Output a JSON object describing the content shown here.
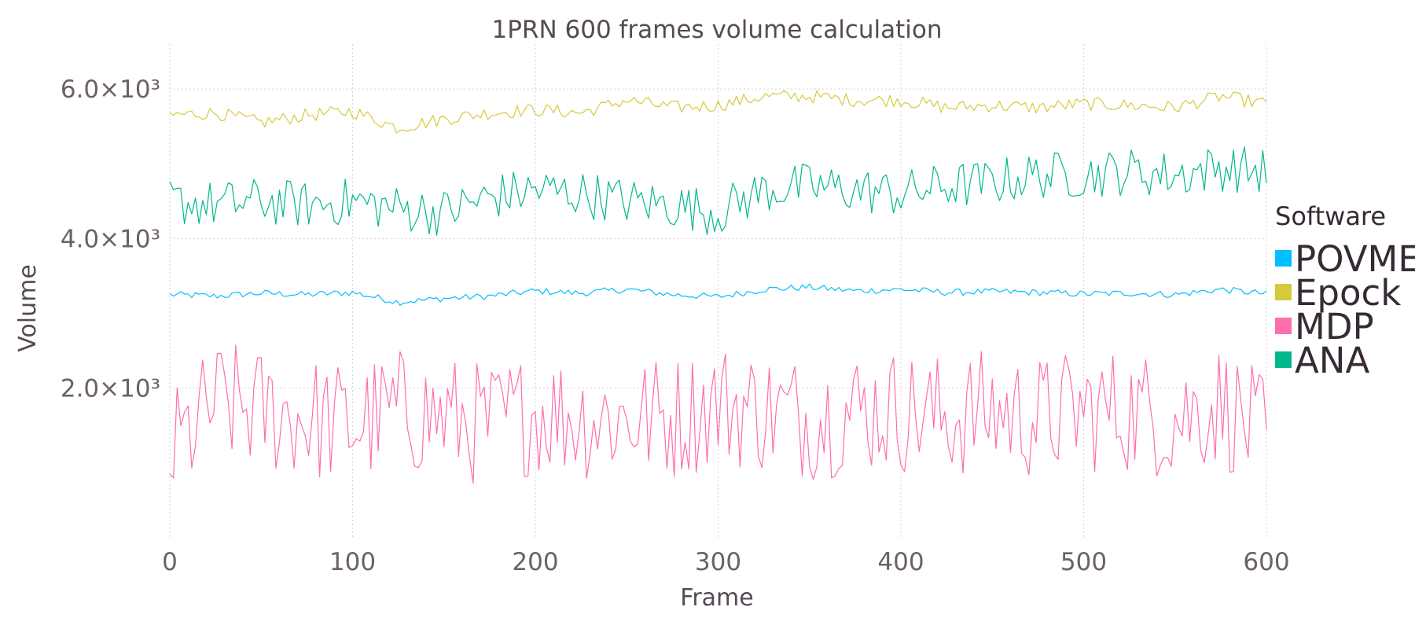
{
  "chart_data": {
    "type": "line",
    "title": "1PRN 600 frames volume calculation",
    "xlabel": "Frame",
    "ylabel": "Volume",
    "xlim": [
      0,
      600
    ],
    "ylim": [
      0,
      6600
    ],
    "x_ticks": [
      0,
      100,
      200,
      300,
      400,
      500,
      600
    ],
    "x_tick_labels": [
      "0",
      "100",
      "200",
      "300",
      "400",
      "500",
      "600"
    ],
    "y_ticks": [
      2000,
      4000,
      6000
    ],
    "y_tick_labels": [
      "2.0×10³",
      "4.0×10³",
      "6.0×10³"
    ],
    "grid": true,
    "legend": {
      "title": "Software",
      "position": "right",
      "entries": [
        {
          "name": "POVME",
          "color": "#00BFFF"
        },
        {
          "name": "Epock",
          "color": "#D4CA3A"
        },
        {
          "name": "MDP",
          "color": "#FF6DAE"
        },
        {
          "name": "ANA",
          "color": "#00B78D"
        }
      ]
    },
    "series": [
      {
        "name": "POVME",
        "color": "#00BFFF",
        "x": [
          0,
          25,
          50,
          75,
          100,
          125,
          150,
          175,
          200,
          225,
          250,
          275,
          300,
          325,
          350,
          375,
          400,
          425,
          450,
          475,
          500,
          525,
          550,
          575,
          600
        ],
        "values": [
          3250,
          3230,
          3270,
          3250,
          3280,
          3150,
          3200,
          3230,
          3300,
          3270,
          3320,
          3250,
          3220,
          3320,
          3350,
          3300,
          3320,
          3280,
          3290,
          3280,
          3260,
          3270,
          3250,
          3320,
          3260
        ]
      },
      {
        "name": "Epock",
        "color": "#D4CA3A",
        "x": [
          0,
          25,
          50,
          75,
          100,
          125,
          150,
          175,
          200,
          225,
          250,
          275,
          300,
          325,
          350,
          375,
          400,
          425,
          450,
          475,
          500,
          525,
          550,
          575,
          600
        ],
        "values": [
          5650,
          5680,
          5550,
          5650,
          5700,
          5480,
          5600,
          5680,
          5720,
          5680,
          5850,
          5750,
          5780,
          5900,
          5900,
          5850,
          5850,
          5750,
          5780,
          5750,
          5800,
          5780,
          5750,
          5900,
          5800
        ]
      },
      {
        "name": "MDP",
        "color": "#FF6DAE",
        "x": [
          0,
          25,
          50,
          75,
          100,
          125,
          150,
          175,
          200,
          225,
          250,
          275,
          300,
          325,
          350,
          375,
          400,
          425,
          450,
          475,
          500,
          525,
          550,
          575,
          600
        ],
        "values": [
          1100,
          1800,
          1700,
          1600,
          1500,
          1700,
          1600,
          1500,
          1700,
          1600,
          1600,
          1600,
          1800,
          1700,
          1600,
          1700,
          1700,
          1600,
          1700,
          1600,
          1700,
          1700,
          1600,
          1800,
          1300
        ]
      },
      {
        "name": "ANA",
        "color": "#00B78D",
        "x": [
          0,
          25,
          50,
          75,
          100,
          125,
          150,
          175,
          200,
          225,
          250,
          275,
          300,
          325,
          350,
          375,
          400,
          425,
          450,
          475,
          500,
          525,
          550,
          575,
          600
        ],
        "values": [
          4500,
          4450,
          4500,
          4450,
          4500,
          4400,
          4350,
          4550,
          4650,
          4600,
          4500,
          4450,
          4350,
          4650,
          4700,
          4650,
          4600,
          4700,
          4750,
          4850,
          4850,
          4900,
          4850,
          4950,
          4900
        ]
      }
    ]
  }
}
